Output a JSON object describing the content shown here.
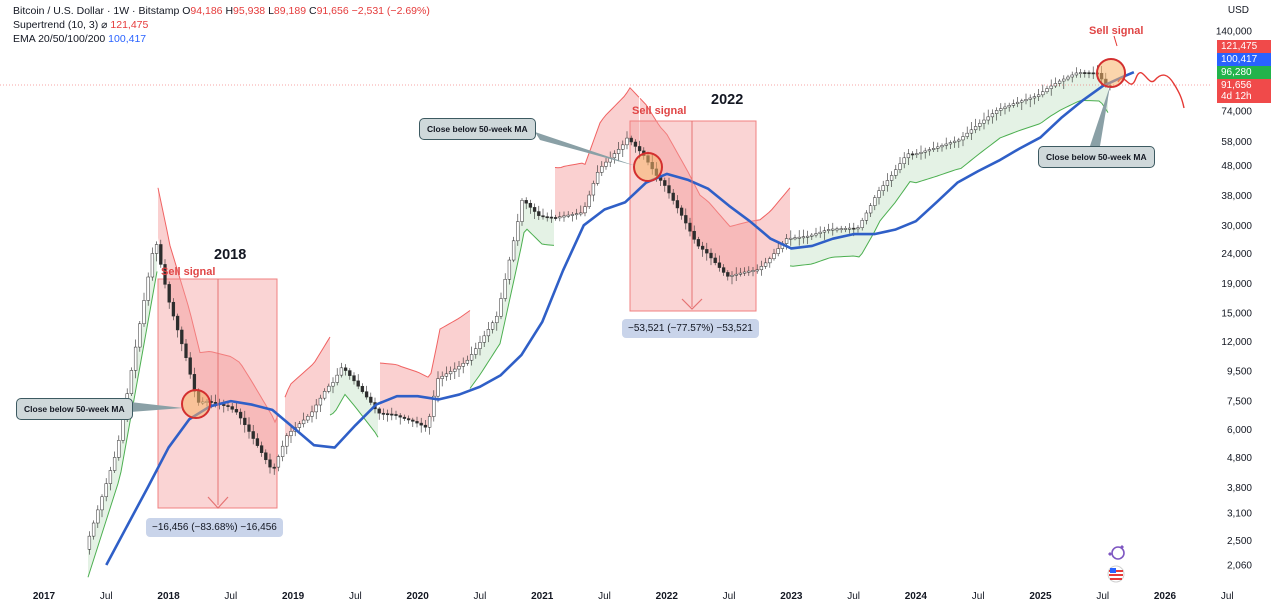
{
  "header": {
    "symbol": "Bitcoin / U.S. Dollar · 1W · Bitstamp",
    "ohlc": [
      {
        "k": "O",
        "v": "94,186"
      },
      {
        "k": "H",
        "v": "95,938"
      },
      {
        "k": "L",
        "v": "89,189"
      },
      {
        "k": "C",
        "v": "91,656"
      }
    ],
    "change": "−2,531 (−2.69%)",
    "indicators": [
      {
        "label": "Supertrend (10, 3)",
        "sym": "⌀",
        "value": "121,475",
        "color": "#e53b3b"
      },
      {
        "label": "EMA 20/50/100/200",
        "sym": "",
        "value": "100,417",
        "color": "#2962ff"
      }
    ]
  },
  "axis": {
    "currency": "USD",
    "price_ticks": [
      "140,000",
      "74,000",
      "58,000",
      "48,000",
      "38,000",
      "30,000",
      "24,000",
      "19,000",
      "15,000",
      "12,000",
      "9,500",
      "7,500",
      "6,000",
      "4,800",
      "3,800",
      "3,100",
      "2,500",
      "2,060"
    ],
    "price_tags": [
      {
        "text": "121,475",
        "color": "#f04a4a"
      },
      {
        "text": "100,417",
        "color": "#2962ff"
      },
      {
        "text": "96,280",
        "color": "#22b34b"
      },
      {
        "text": "91,656",
        "color": "#f04a4a"
      },
      {
        "text": "4d 12h",
        "color": "#f04a4a"
      }
    ],
    "time_ticks": [
      "2017",
      "Jul",
      "2018",
      "Jul",
      "2019",
      "Jul",
      "2020",
      "Jul",
      "2021",
      "Jul",
      "2022",
      "Jul",
      "2023",
      "Jul",
      "2024",
      "Jul",
      "2025",
      "Jul",
      "2026",
      "Jul"
    ],
    "bold_time_ticks": [
      "2017",
      "2018",
      "2019",
      "2020",
      "2021",
      "2022",
      "2023",
      "2024",
      "2025",
      "2026"
    ]
  },
  "annotations": {
    "callout_label": "Close below 50-week MA",
    "sell_signal": "Sell signal",
    "year_2018": "2018",
    "year_2022": "2022",
    "measure_2018": "−16,456 (−83.68%) −16,456",
    "measure_2022": "−53,521 (−77.57%) −53,521"
  },
  "colors": {
    "ema": "#2f5fc7",
    "candle_up": "#26a69a",
    "candle_down": "#ef5350",
    "supertrend_up": "#4caf50",
    "supertrend_down": "#f06262",
    "zone_red": "#f6a9a9",
    "zone_green": "#cde8d0"
  },
  "chart_data": {
    "type": "line",
    "title": "Bitcoin / U.S. Dollar · 1W · Bitstamp",
    "ylabel": "USD",
    "y_scale": "log",
    "ylim": [
      1800,
      160000
    ],
    "series": [
      {
        "name": "EMA 20/50/100/200",
        "x": [
          "2017-07",
          "2017-09",
          "2017-11",
          "2018-01",
          "2018-03",
          "2018-05",
          "2018-07",
          "2018-09",
          "2018-11",
          "2019-01",
          "2019-03",
          "2019-05",
          "2019-07",
          "2019-09",
          "2019-11",
          "2020-01",
          "2020-03",
          "2020-05",
          "2020-07",
          "2020-09",
          "2020-11",
          "2021-01",
          "2021-03",
          "2021-05",
          "2021-07",
          "2021-09",
          "2021-11",
          "2022-01",
          "2022-03",
          "2022-05",
          "2022-07",
          "2022-09",
          "2022-11",
          "2023-01",
          "2023-03",
          "2023-05",
          "2023-07",
          "2023-09",
          "2023-11",
          "2024-01",
          "2024-03",
          "2024-05",
          "2024-07",
          "2024-09",
          "2024-11",
          "2025-01",
          "2025-03",
          "2025-05",
          "2025-07",
          "2025-09",
          "2025-10"
        ],
        "values": [
          2060,
          2800,
          3800,
          5200,
          6500,
          7200,
          7500,
          7300,
          7000,
          6100,
          5300,
          5200,
          6200,
          7300,
          7800,
          7800,
          7600,
          7900,
          8400,
          9200,
          10800,
          14000,
          21000,
          30000,
          34000,
          36000,
          42000,
          45000,
          43000,
          40000,
          35000,
          31000,
          27000,
          25000,
          25500,
          27000,
          28000,
          28000,
          29000,
          31000,
          36000,
          42000,
          46000,
          50000,
          55000,
          60000,
          70000,
          80000,
          90000,
          97000,
          100417
        ]
      }
    ],
    "legend": "top-left",
    "grid": false
  }
}
